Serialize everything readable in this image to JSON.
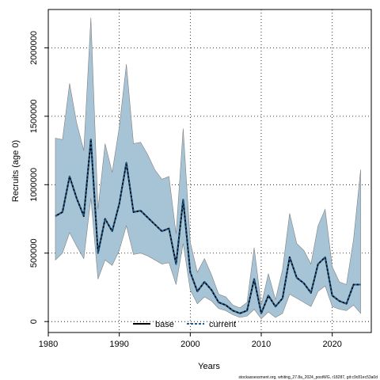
{
  "chart_data": {
    "type": "area",
    "xlabel": "Years",
    "ylabel": "Recruits (age 0)",
    "footnote": "stockassessment.org, whiting_27.8a_2024_postWG, r18287, git:c9c81ec53a0d",
    "xlim": [
      1980,
      2025.5
    ],
    "ylim": [
      -80000,
      2280000
    ],
    "x_ticks": [
      1980,
      1990,
      2000,
      2010,
      2020
    ],
    "x_tick_labels": [
      "1980",
      "1990",
      "2000",
      "2010",
      "2020"
    ],
    "y_ticks": [
      0,
      500000,
      1000000,
      1500000,
      2000000
    ],
    "y_tick_labels": [
      "0",
      "500000",
      "1000000",
      "1500000",
      "2000000"
    ],
    "grid": true,
    "legend_position": "bottom-center",
    "colors": {
      "band": "#a7c4d6",
      "band_edge": "#808080",
      "base": "#000000",
      "current": "#1f5a8a"
    },
    "years": [
      1981,
      1982,
      1983,
      1984,
      1985,
      1986,
      1987,
      1988,
      1989,
      1990,
      1991,
      1992,
      1993,
      1994,
      1995,
      1996,
      1997,
      1998,
      1999,
      2000,
      2001,
      2002,
      2003,
      2004,
      2005,
      2006,
      2007,
      2008,
      2009,
      2010,
      2011,
      2012,
      2013,
      2014,
      2015,
      2016,
      2017,
      2018,
      2019,
      2020,
      2021,
      2022,
      2023,
      2024
    ],
    "lower": [
      450000,
      500000,
      650000,
      550000,
      460000,
      900000,
      310000,
      450000,
      410000,
      520000,
      700000,
      490000,
      500000,
      480000,
      450000,
      420000,
      430000,
      270000,
      570000,
      230000,
      130000,
      180000,
      150000,
      95000,
      80000,
      50000,
      30000,
      40000,
      90000,
      20000,
      70000,
      30000,
      60000,
      200000,
      170000,
      140000,
      110000,
      220000,
      260000,
      110000,
      90000,
      80000,
      120000,
      60000
    ],
    "upper": [
      1340000,
      1330000,
      1740000,
      1450000,
      1250000,
      2220000,
      820000,
      1300000,
      1090000,
      1420000,
      1880000,
      1300000,
      1310000,
      1220000,
      1110000,
      1040000,
      1060000,
      640000,
      1410000,
      580000,
      360000,
      460000,
      340000,
      200000,
      180000,
      120000,
      100000,
      140000,
      540000,
      120000,
      350000,
      160000,
      380000,
      790000,
      570000,
      520000,
      420000,
      700000,
      820000,
      400000,
      290000,
      270000,
      600000,
      1110000
    ],
    "series": [
      {
        "name": "base",
        "values": [
          770000,
          800000,
          1060000,
          900000,
          770000,
          1330000,
          500000,
          750000,
          660000,
          860000,
          1160000,
          800000,
          810000,
          760000,
          710000,
          660000,
          680000,
          420000,
          890000,
          360000,
          220000,
          290000,
          230000,
          140000,
          120000,
          80000,
          60000,
          80000,
          310000,
          60000,
          190000,
          110000,
          170000,
          470000,
          320000,
          280000,
          210000,
          420000,
          470000,
          190000,
          150000,
          130000,
          270000,
          270000
        ]
      },
      {
        "name": "current",
        "values": [
          770000,
          800000,
          1060000,
          900000,
          770000,
          1330000,
          500000,
          750000,
          660000,
          860000,
          1160000,
          800000,
          810000,
          760000,
          710000,
          660000,
          680000,
          420000,
          890000,
          360000,
          220000,
          290000,
          230000,
          140000,
          120000,
          80000,
          60000,
          80000,
          310000,
          60000,
          190000,
          110000,
          170000,
          470000,
          320000,
          280000,
          210000,
          420000,
          470000,
          190000,
          150000,
          130000,
          270000,
          270000
        ]
      }
    ]
  }
}
